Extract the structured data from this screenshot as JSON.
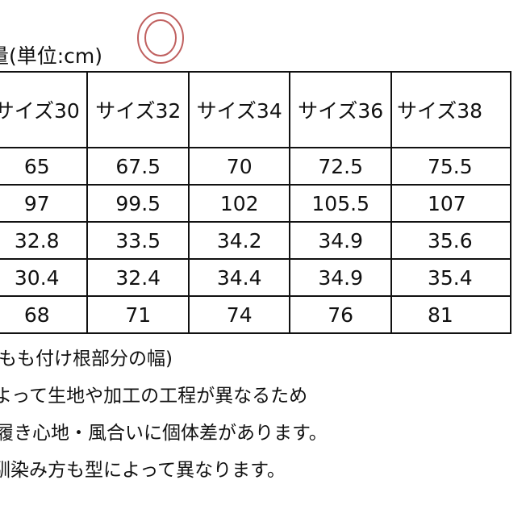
{
  "title": "量(単位:cm)",
  "mark_color": "#c0605f",
  "table": {
    "headers": [
      "サイズ30",
      "サイズ32",
      "サイズ34",
      "サイズ36",
      "サイズ38"
    ],
    "rows": [
      [
        "65",
        "67.5",
        "70",
        "72.5",
        "75.5"
      ],
      [
        "97",
        "99.5",
        "102",
        "105.5",
        "107"
      ],
      [
        "32.8",
        "33.5",
        "34.2",
        "34.9",
        "35.6"
      ],
      [
        "30.4",
        "32.4",
        "34.4",
        "34.9",
        "35.4"
      ],
      [
        "68",
        "71",
        "74",
        "76",
        "81"
      ]
    ]
  },
  "notes": [
    "もも付け根部分の幅)",
    "よって生地や加工の工程が異なるため",
    "履き心地・風合いに個体差があります。",
    "馴染み方も型によって異なります。"
  ]
}
